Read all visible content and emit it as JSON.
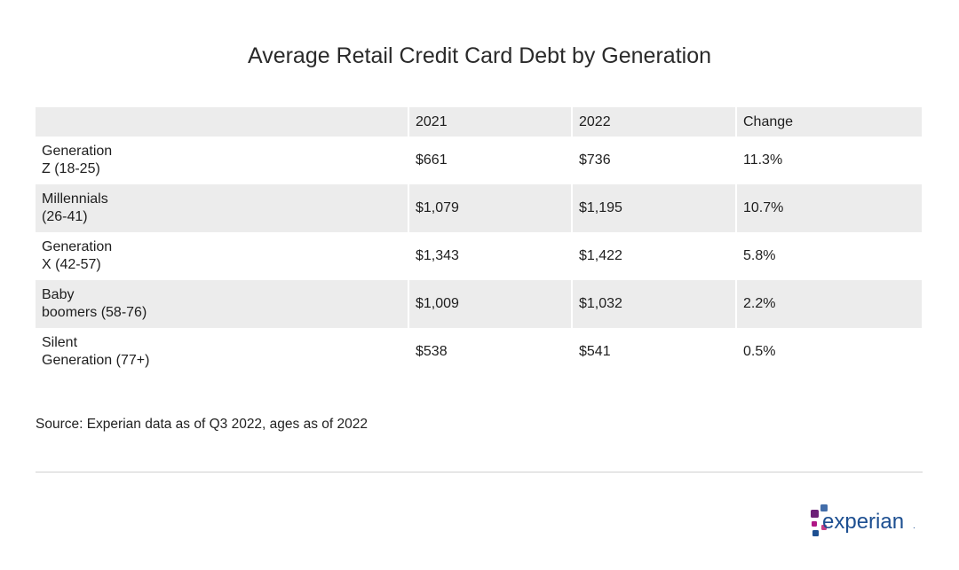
{
  "chart_data": {
    "type": "table",
    "title": "Average Retail Credit Card Debt by Generation",
    "columns": [
      "",
      "2021",
      "2022",
      "Change"
    ],
    "rows": [
      {
        "generation_line1": "Generation",
        "generation_line2": "Z (18-25)",
        "y2021": "$661",
        "y2022": "$736",
        "change": "11.3%"
      },
      {
        "generation_line1": "Millennials",
        "generation_line2": "(26-41)",
        "y2021": "$1,079",
        "y2022": "$1,195",
        "change": "10.7%"
      },
      {
        "generation_line1": "Generation",
        "generation_line2": "X (42-57)",
        "y2021": "$1,343",
        "y2022": "$1,422",
        "change": "5.8%"
      },
      {
        "generation_line1": "Baby",
        "generation_line2": "boomers (58-76)",
        "y2021": "$1,009",
        "y2022": "$1,032",
        "change": "2.2%"
      },
      {
        "generation_line1": "Silent",
        "generation_line2": "Generation (77+)",
        "y2021": "$538",
        "y2022": "$541",
        "change": "0.5%"
      }
    ],
    "source": "Source: Experian data as of Q3 2022, ages as of 2022"
  },
  "logo": {
    "text": "experian",
    "trademark": ".",
    "colors": {
      "dark_blue": "#1d4f91",
      "purple": "#6d2077",
      "magenta": "#af1685",
      "light_blue": "#426da9",
      "pink": "#c73f86"
    }
  }
}
